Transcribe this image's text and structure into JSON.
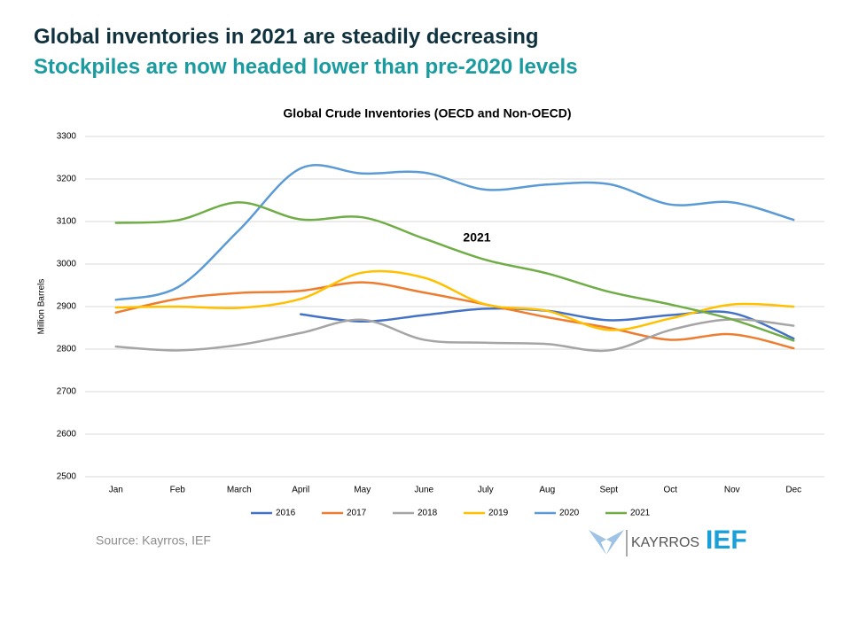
{
  "header": {
    "title": "Global inventories in 2021 are steadily decreasing",
    "subtitle": "Stockpiles are now headed lower than pre-2020 levels"
  },
  "chart_data": {
    "type": "line",
    "title": "Global Crude Inventories (OECD and Non-OECD)",
    "y_label": "Million Barrels",
    "categories": [
      "Jan",
      "Feb",
      "March",
      "April",
      "May",
      "June",
      "July",
      "Aug",
      "Sept",
      "Oct",
      "Nov",
      "Dec"
    ],
    "series": [
      {
        "name": "2016",
        "color": "#4472c4",
        "values": [
          null,
          null,
          null,
          2882,
          2865,
          2880,
          2895,
          2890,
          2868,
          2880,
          2885,
          2825
        ]
      },
      {
        "name": "2017",
        "color": "#ed7d31",
        "values": [
          2886,
          2918,
          2932,
          2937,
          2957,
          2933,
          2905,
          2875,
          2850,
          2822,
          2835,
          2802
        ]
      },
      {
        "name": "2018",
        "color": "#a5a5a5",
        "values": [
          2806,
          2797,
          2810,
          2838,
          2869,
          2822,
          2815,
          2812,
          2797,
          2845,
          2870,
          2855
        ]
      },
      {
        "name": "2019",
        "color": "#ffc000",
        "values": [
          2898,
          2900,
          2897,
          2918,
          2980,
          2968,
          2905,
          2890,
          2845,
          2872,
          2905,
          2900
        ]
      },
      {
        "name": "2020",
        "color": "#5b9bd5",
        "values": [
          2916,
          2945,
          3080,
          3225,
          3213,
          3215,
          3175,
          3187,
          3188,
          3140,
          3145,
          3104
        ]
      },
      {
        "name": "2021",
        "color": "#70ad47",
        "values": [
          3097,
          3103,
          3145,
          3105,
          3110,
          3060,
          3010,
          2978,
          2935,
          2905,
          2870,
          2820
        ]
      }
    ],
    "ylim": [
      2500,
      3300
    ],
    "yticks": [
      2500,
      2600,
      2700,
      2800,
      2900,
      3000,
      3100,
      3200,
      3300
    ],
    "grid": true,
    "legend": "bottom",
    "annotation": "2021"
  },
  "footer": {
    "source": "Source: Kayrros, IEF",
    "logos": [
      "KAYRROS",
      "IEF"
    ]
  }
}
